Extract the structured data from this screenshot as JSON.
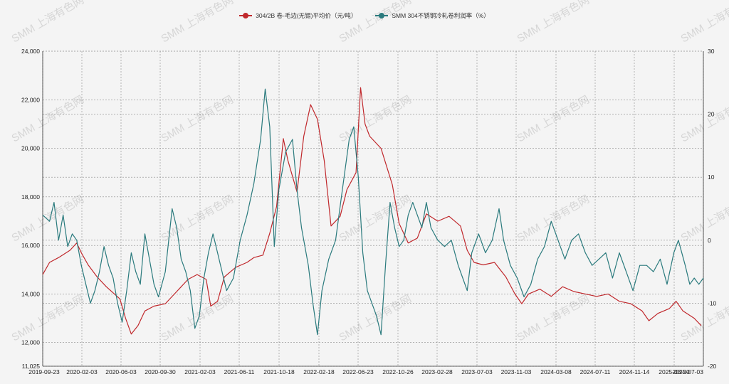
{
  "watermark": "SMM 上海有色网",
  "colors": {
    "series1": "#c0282c",
    "series2": "#2a7a7d",
    "grid": "#8a8a8a",
    "axis": "#333333"
  },
  "chart_data": {
    "type": "line",
    "grid": true,
    "legend_position": "top-center",
    "x_tick_labels": [
      "2019-09-23",
      "2020-02-03",
      "2020-06-03",
      "2020-09-30",
      "2021-02-03",
      "2021-06-11",
      "2021-10-18",
      "2022-02-18",
      "2022-06-23",
      "2022-10-26",
      "2023-02-28",
      "2023-07-03",
      "2023-11-03",
      "2024-03-08",
      "2024-07-11",
      "2024-11-14",
      "2025-03-20",
      "2025-07-03"
    ],
    "y_left": {
      "ticks": [
        "11,025",
        "12,000",
        "14,000",
        "16,000",
        "18,000",
        "20,000",
        "22,000",
        "24,000"
      ],
      "tick_values": [
        11025,
        12000,
        14000,
        16000,
        18000,
        20000,
        22000,
        24000
      ],
      "range": [
        11025,
        24000
      ]
    },
    "y_right": {
      "ticks": [
        "-20",
        "-10",
        "0",
        "10",
        "20",
        "30"
      ],
      "tick_values": [
        -20,
        -10,
        0,
        10,
        20,
        30
      ],
      "range": [
        -20,
        30
      ]
    },
    "series": [
      {
        "name": "304/2B 卷-毛边(无锡)平均价（元/吨）",
        "axis": "left",
        "points": [
          [
            2019.72,
            14800
          ],
          [
            2019.78,
            15300
          ],
          [
            2019.86,
            15500
          ],
          [
            2019.96,
            15800
          ],
          [
            2020.02,
            16100
          ],
          [
            2020.06,
            15700
          ],
          [
            2020.12,
            15200
          ],
          [
            2020.2,
            14700
          ],
          [
            2020.28,
            14300
          ],
          [
            2020.4,
            13800
          ],
          [
            2020.45,
            13000
          ],
          [
            2020.5,
            12350
          ],
          [
            2020.56,
            12700
          ],
          [
            2020.62,
            13300
          ],
          [
            2020.7,
            13500
          ],
          [
            2020.8,
            13600
          ],
          [
            2020.9,
            14100
          ],
          [
            2021.0,
            14600
          ],
          [
            2021.08,
            14800
          ],
          [
            2021.16,
            14600
          ],
          [
            2021.2,
            13500
          ],
          [
            2021.26,
            13700
          ],
          [
            2021.32,
            14700
          ],
          [
            2021.42,
            15100
          ],
          [
            2021.52,
            15300
          ],
          [
            2021.58,
            15500
          ],
          [
            2021.66,
            15600
          ],
          [
            2021.72,
            16500
          ],
          [
            2021.78,
            17600
          ],
          [
            2021.84,
            20400
          ],
          [
            2021.88,
            19500
          ],
          [
            2021.96,
            18200
          ],
          [
            2022.02,
            20500
          ],
          [
            2022.08,
            21800
          ],
          [
            2022.14,
            21200
          ],
          [
            2022.2,
            19500
          ],
          [
            2022.26,
            16800
          ],
          [
            2022.34,
            17200
          ],
          [
            2022.4,
            18300
          ],
          [
            2022.48,
            19000
          ],
          [
            2022.52,
            22500
          ],
          [
            2022.56,
            21000
          ],
          [
            2022.6,
            20500
          ],
          [
            2022.7,
            20000
          ],
          [
            2022.8,
            18500
          ],
          [
            2022.86,
            16900
          ],
          [
            2022.94,
            16100
          ],
          [
            2023.02,
            16300
          ],
          [
            2023.1,
            17300
          ],
          [
            2023.2,
            17000
          ],
          [
            2023.3,
            17200
          ],
          [
            2023.4,
            16800
          ],
          [
            2023.46,
            15800
          ],
          [
            2023.52,
            15300
          ],
          [
            2023.6,
            15200
          ],
          [
            2023.7,
            15300
          ],
          [
            2023.8,
            14700
          ],
          [
            2023.88,
            14000
          ],
          [
            2023.94,
            13600
          ],
          [
            2024.0,
            14000
          ],
          [
            2024.1,
            14200
          ],
          [
            2024.2,
            13900
          ],
          [
            2024.3,
            14300
          ],
          [
            2024.4,
            14100
          ],
          [
            2024.5,
            14000
          ],
          [
            2024.6,
            13900
          ],
          [
            2024.7,
            14000
          ],
          [
            2024.8,
            13700
          ],
          [
            2024.9,
            13600
          ],
          [
            2025.0,
            13300
          ],
          [
            2025.06,
            12900
          ],
          [
            2025.14,
            13200
          ],
          [
            2025.24,
            13400
          ],
          [
            2025.3,
            13700
          ],
          [
            2025.36,
            13300
          ],
          [
            2025.46,
            13000
          ],
          [
            2025.52,
            12700
          ]
        ]
      },
      {
        "name": "SMM 304不锈钢冷轧卷利润率（%）",
        "axis": "right",
        "points": [
          [
            2019.72,
            4
          ],
          [
            2019.78,
            3
          ],
          [
            2019.82,
            6
          ],
          [
            2019.86,
            0
          ],
          [
            2019.9,
            4
          ],
          [
            2019.94,
            -1
          ],
          [
            2019.98,
            1
          ],
          [
            2020.02,
            0
          ],
          [
            2020.06,
            -4
          ],
          [
            2020.1,
            -7
          ],
          [
            2020.14,
            -10
          ],
          [
            2020.18,
            -8
          ],
          [
            2020.22,
            -5
          ],
          [
            2020.26,
            -1
          ],
          [
            2020.3,
            -4
          ],
          [
            2020.34,
            -6
          ],
          [
            2020.38,
            -10
          ],
          [
            2020.42,
            -13
          ],
          [
            2020.46,
            -8
          ],
          [
            2020.5,
            -2
          ],
          [
            2020.54,
            -5
          ],
          [
            2020.58,
            -7
          ],
          [
            2020.62,
            1
          ],
          [
            2020.66,
            -3
          ],
          [
            2020.7,
            -7
          ],
          [
            2020.74,
            -9
          ],
          [
            2020.8,
            -5
          ],
          [
            2020.86,
            5
          ],
          [
            2020.9,
            2
          ],
          [
            2020.94,
            -3
          ],
          [
            2020.98,
            -5
          ],
          [
            2021.02,
            -8
          ],
          [
            2021.06,
            -14
          ],
          [
            2021.1,
            -12
          ],
          [
            2021.14,
            -6
          ],
          [
            2021.18,
            -2
          ],
          [
            2021.22,
            1
          ],
          [
            2021.26,
            -2
          ],
          [
            2021.3,
            -5
          ],
          [
            2021.34,
            -8
          ],
          [
            2021.4,
            -6
          ],
          [
            2021.46,
            0
          ],
          [
            2021.52,
            4
          ],
          [
            2021.58,
            9
          ],
          [
            2021.64,
            16
          ],
          [
            2021.68,
            24
          ],
          [
            2021.72,
            18
          ],
          [
            2021.76,
            -1
          ],
          [
            2021.8,
            8
          ],
          [
            2021.86,
            14
          ],
          [
            2021.92,
            16
          ],
          [
            2021.96,
            8
          ],
          [
            2022.0,
            2
          ],
          [
            2022.06,
            -4
          ],
          [
            2022.1,
            -10
          ],
          [
            2022.14,
            -15
          ],
          [
            2022.18,
            -8
          ],
          [
            2022.24,
            -3
          ],
          [
            2022.3,
            0
          ],
          [
            2022.36,
            8
          ],
          [
            2022.42,
            16
          ],
          [
            2022.46,
            18
          ],
          [
            2022.5,
            10
          ],
          [
            2022.54,
            -2
          ],
          [
            2022.58,
            -8
          ],
          [
            2022.62,
            -10
          ],
          [
            2022.66,
            -12
          ],
          [
            2022.7,
            -15
          ],
          [
            2022.74,
            -4
          ],
          [
            2022.78,
            6
          ],
          [
            2022.82,
            2
          ],
          [
            2022.86,
            -1
          ],
          [
            2022.9,
            0
          ],
          [
            2022.94,
            4
          ],
          [
            2022.98,
            6
          ],
          [
            2023.02,
            4
          ],
          [
            2023.06,
            2
          ],
          [
            2023.1,
            6
          ],
          [
            2023.14,
            2
          ],
          [
            2023.2,
            0
          ],
          [
            2023.26,
            -1
          ],
          [
            2023.32,
            0
          ],
          [
            2023.38,
            -4
          ],
          [
            2023.42,
            -6
          ],
          [
            2023.46,
            -8
          ],
          [
            2023.5,
            -2
          ],
          [
            2023.56,
            1
          ],
          [
            2023.62,
            -2
          ],
          [
            2023.68,
            0
          ],
          [
            2023.74,
            5
          ],
          [
            2023.78,
            0
          ],
          [
            2023.84,
            -4
          ],
          [
            2023.9,
            -6
          ],
          [
            2023.96,
            -9
          ],
          [
            2024.02,
            -7
          ],
          [
            2024.08,
            -3
          ],
          [
            2024.14,
            -1
          ],
          [
            2024.2,
            3
          ],
          [
            2024.26,
            0
          ],
          [
            2024.32,
            -3
          ],
          [
            2024.38,
            0
          ],
          [
            2024.44,
            1
          ],
          [
            2024.5,
            -2
          ],
          [
            2024.56,
            -4
          ],
          [
            2024.62,
            -3
          ],
          [
            2024.68,
            -2
          ],
          [
            2024.74,
            -6
          ],
          [
            2024.8,
            -2
          ],
          [
            2024.86,
            -5
          ],
          [
            2024.92,
            -8
          ],
          [
            2024.98,
            -4
          ],
          [
            2025.04,
            -4
          ],
          [
            2025.1,
            -5
          ],
          [
            2025.16,
            -3
          ],
          [
            2025.22,
            -7
          ],
          [
            2025.28,
            -2
          ],
          [
            2025.32,
            0
          ],
          [
            2025.38,
            -4
          ],
          [
            2025.42,
            -7
          ],
          [
            2025.46,
            -6
          ],
          [
            2025.5,
            -7
          ],
          [
            2025.54,
            -6
          ]
        ]
      }
    ]
  }
}
